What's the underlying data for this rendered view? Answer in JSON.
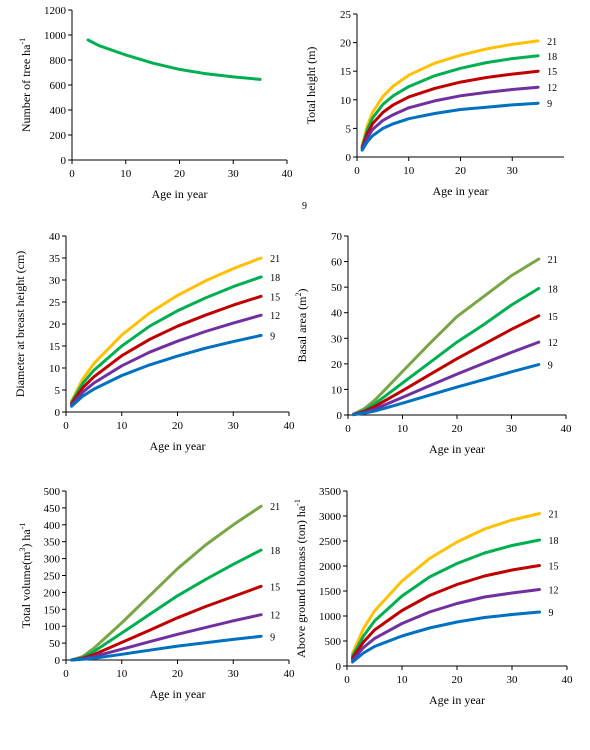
{
  "colors": {
    "21": "#ffc000",
    "18": "#00b050",
    "15": "#c00000",
    "12": "#7030a0",
    "9": "#0070c0",
    "single": "#00b050",
    "olive": "#77a744"
  },
  "stray_label": "9",
  "chart_data": [
    {
      "type": "line",
      "xlabel": "Age in year",
      "ylabel": "Number of tree ha",
      "ylabel_sup": "-1",
      "xlim": [
        0,
        40
      ],
      "ylim": [
        0,
        1200
      ],
      "xticks": [
        0,
        10,
        20,
        30,
        40
      ],
      "yticks": [
        0,
        200,
        400,
        600,
        800,
        1000,
        1200
      ],
      "series": [
        {
          "color_key": "single",
          "x": [
            3,
            5,
            10,
            15,
            20,
            25,
            30,
            35
          ],
          "y": [
            960,
            915,
            840,
            775,
            725,
            690,
            665,
            645
          ]
        }
      ]
    },
    {
      "type": "line",
      "xlabel": "Age in year",
      "ylabel": "Total height (m)",
      "xlim": [
        0,
        40
      ],
      "ylim": [
        0,
        25
      ],
      "xticks": [
        0,
        10,
        20,
        30
      ],
      "xtick_labels": [
        "0",
        "10",
        "20",
        "30"
      ],
      "yticks": [
        0,
        5,
        10,
        15,
        20,
        25
      ],
      "series": [
        {
          "name": "21",
          "color_key": "21",
          "x": [
            1,
            2,
            3,
            5,
            7,
            10,
            15,
            20,
            25,
            30,
            35
          ],
          "y": [
            2.0,
            5.5,
            7.8,
            10.6,
            12.4,
            14.3,
            16.4,
            17.8,
            18.9,
            19.7,
            20.3
          ]
        },
        {
          "name": "18",
          "color_key": "18",
          "x": [
            1,
            2,
            3,
            5,
            7,
            10,
            15,
            20,
            25,
            30,
            35
          ],
          "y": [
            1.8,
            4.8,
            6.8,
            9.2,
            10.7,
            12.3,
            14.2,
            15.5,
            16.5,
            17.2,
            17.7
          ]
        },
        {
          "name": "15",
          "color_key": "15",
          "x": [
            1,
            2,
            3,
            5,
            7,
            10,
            15,
            20,
            25,
            30,
            35
          ],
          "y": [
            1.6,
            4.1,
            5.8,
            7.8,
            9.1,
            10.5,
            12.0,
            13.1,
            13.9,
            14.5,
            15.0
          ]
        },
        {
          "name": "12",
          "color_key": "12",
          "x": [
            1,
            2,
            3,
            5,
            7,
            10,
            15,
            20,
            25,
            30,
            35
          ],
          "y": [
            1.4,
            3.4,
            4.8,
            6.4,
            7.4,
            8.6,
            9.8,
            10.7,
            11.3,
            11.8,
            12.2
          ]
        },
        {
          "name": "9",
          "color_key": "9",
          "x": [
            1,
            2,
            3,
            5,
            7,
            10,
            15,
            20,
            25,
            30,
            35
          ],
          "y": [
            1.2,
            2.7,
            3.7,
            5.0,
            5.8,
            6.7,
            7.6,
            8.3,
            8.7,
            9.1,
            9.4
          ]
        }
      ]
    },
    {
      "type": "line",
      "xlabel": "Age in year",
      "ylabel": "Diameter at breast height (cm)",
      "xlim": [
        0,
        40
      ],
      "ylim": [
        0,
        40
      ],
      "xticks": [
        0,
        10,
        20,
        30,
        40
      ],
      "yticks": [
        0,
        5,
        10,
        15,
        20,
        25,
        30,
        35,
        40
      ],
      "series": [
        {
          "name": "21",
          "color_key": "21",
          "x": [
            1,
            3,
            5,
            10,
            15,
            20,
            25,
            30,
            35
          ],
          "y": [
            2.5,
            7.5,
            11.0,
            17.5,
            22.5,
            26.5,
            29.8,
            32.6,
            35.0
          ]
        },
        {
          "name": "18",
          "color_key": "18",
          "x": [
            1,
            3,
            5,
            10,
            15,
            20,
            25,
            30,
            35
          ],
          "y": [
            2.2,
            6.5,
            9.5,
            15.0,
            19.5,
            23.0,
            25.9,
            28.5,
            30.7
          ]
        },
        {
          "name": "15",
          "color_key": "15",
          "x": [
            1,
            3,
            5,
            10,
            15,
            20,
            25,
            30,
            35
          ],
          "y": [
            1.9,
            5.5,
            8.0,
            12.8,
            16.5,
            19.5,
            22.0,
            24.3,
            26.3
          ]
        },
        {
          "name": "12",
          "color_key": "12",
          "x": [
            1,
            3,
            5,
            10,
            15,
            20,
            25,
            30,
            35
          ],
          "y": [
            1.6,
            4.5,
            6.6,
            10.5,
            13.6,
            16.1,
            18.3,
            20.2,
            22.0
          ]
        },
        {
          "name": "9",
          "color_key": "9",
          "x": [
            1,
            3,
            5,
            10,
            15,
            20,
            25,
            30,
            35
          ],
          "y": [
            1.3,
            3.6,
            5.2,
            8.3,
            10.7,
            12.7,
            14.5,
            16.0,
            17.4
          ]
        }
      ]
    },
    {
      "type": "line",
      "xlabel": "Age in year",
      "ylabel": "Basal area (m",
      "ylabel_sup": "2",
      "ylabel_tail": ")",
      "xlim": [
        0,
        40
      ],
      "ylim": [
        0,
        70
      ],
      "xticks": [
        0,
        10,
        20,
        30,
        40
      ],
      "yticks": [
        0,
        10,
        20,
        30,
        40,
        50,
        60,
        70
      ],
      "series": [
        {
          "name": "21",
          "color_key": "olive",
          "x": [
            1,
            3,
            5,
            10,
            15,
            20,
            25,
            30,
            35
          ],
          "y": [
            0.3,
            2.5,
            6.0,
            17.0,
            28.0,
            38.5,
            46.5,
            54.5,
            61.0
          ]
        },
        {
          "name": "18",
          "color_key": "18",
          "x": [
            1,
            3,
            5,
            10,
            15,
            20,
            25,
            30,
            35
          ],
          "y": [
            0.2,
            1.8,
            4.5,
            12.5,
            20.5,
            28.5,
            35.5,
            43.0,
            49.5
          ]
        },
        {
          "name": "15",
          "color_key": "15",
          "x": [
            1,
            3,
            5,
            10,
            15,
            20,
            25,
            30,
            35
          ],
          "y": [
            0.2,
            1.4,
            3.4,
            9.5,
            15.8,
            22.0,
            27.8,
            33.5,
            38.8
          ]
        },
        {
          "name": "12",
          "color_key": "12",
          "x": [
            1,
            3,
            5,
            10,
            15,
            20,
            25,
            30,
            35
          ],
          "y": [
            0.1,
            1.0,
            2.4,
            6.9,
            11.5,
            16.0,
            20.3,
            24.5,
            28.5
          ]
        },
        {
          "name": "9",
          "color_key": "9",
          "x": [
            1,
            3,
            5,
            10,
            15,
            20,
            25,
            30,
            35
          ],
          "y": [
            0.1,
            0.7,
            1.6,
            4.6,
            7.8,
            10.9,
            13.9,
            16.9,
            19.7
          ]
        }
      ]
    },
    {
      "type": "line",
      "xlabel": "Age in year",
      "ylabel": "Total volume(m",
      "ylabel_sup": "3",
      "ylabel_tail": ") ha",
      "ylabel_sup2": "-1",
      "xlim": [
        0,
        40
      ],
      "ylim": [
        0,
        500
      ],
      "xticks": [
        0,
        10,
        20,
        30,
        40
      ],
      "yticks": [
        0,
        50,
        100,
        150,
        200,
        250,
        300,
        350,
        400,
        450,
        500
      ],
      "series": [
        {
          "name": "21",
          "color_key": "olive",
          "x": [
            1,
            3,
            5,
            10,
            15,
            20,
            25,
            30,
            35
          ],
          "y": [
            0,
            10,
            35,
            110,
            190,
            270,
            340,
            400,
            455
          ]
        },
        {
          "name": "18",
          "color_key": "18",
          "x": [
            1,
            3,
            5,
            10,
            15,
            20,
            25,
            30,
            35
          ],
          "y": [
            0,
            7,
            25,
            80,
            135,
            190,
            238,
            283,
            325
          ]
        },
        {
          "name": "15",
          "color_key": "15",
          "x": [
            1,
            3,
            5,
            10,
            15,
            20,
            25,
            30,
            35
          ],
          "y": [
            0,
            5,
            16,
            52,
            88,
            125,
            158,
            188,
            218
          ]
        },
        {
          "name": "12",
          "color_key": "12",
          "x": [
            1,
            3,
            5,
            10,
            15,
            20,
            25,
            30,
            35
          ],
          "y": [
            0,
            3,
            10,
            32,
            54,
            76,
            96,
            116,
            134
          ]
        },
        {
          "name": "9",
          "color_key": "9",
          "x": [
            1,
            3,
            5,
            10,
            15,
            20,
            25,
            30,
            35
          ],
          "y": [
            0,
            2,
            5,
            17,
            29,
            41,
            51,
            61,
            70
          ]
        }
      ]
    },
    {
      "type": "line",
      "xlabel": "Age in year",
      "ylabel": "Above ground biomass (ton) ha",
      "ylabel_sup": "-1",
      "xlim": [
        0,
        40
      ],
      "ylim": [
        0,
        3500
      ],
      "xticks": [
        0,
        10,
        20,
        30,
        40
      ],
      "yticks": [
        0,
        500,
        1000,
        1500,
        2000,
        2500,
        3000,
        3500
      ],
      "series": [
        {
          "name": "21",
          "color_key": "21",
          "x": [
            1,
            3,
            5,
            10,
            15,
            20,
            25,
            30,
            35
          ],
          "y": [
            250,
            750,
            1100,
            1700,
            2150,
            2480,
            2740,
            2920,
            3050
          ]
        },
        {
          "name": "18",
          "color_key": "18",
          "x": [
            1,
            3,
            5,
            10,
            15,
            20,
            25,
            30,
            35
          ],
          "y": [
            200,
            600,
            900,
            1400,
            1780,
            2050,
            2260,
            2410,
            2520
          ]
        },
        {
          "name": "15",
          "color_key": "15",
          "x": [
            1,
            3,
            5,
            10,
            15,
            20,
            25,
            30,
            35
          ],
          "y": [
            160,
            480,
            720,
            1110,
            1410,
            1630,
            1800,
            1920,
            2010
          ]
        },
        {
          "name": "12",
          "color_key": "12",
          "x": [
            1,
            3,
            5,
            10,
            15,
            20,
            25,
            30,
            35
          ],
          "y": [
            120,
            370,
            550,
            850,
            1080,
            1250,
            1380,
            1460,
            1530
          ]
        },
        {
          "name": "9",
          "color_key": "9",
          "x": [
            1,
            3,
            5,
            10,
            15,
            20,
            25,
            30,
            35
          ],
          "y": [
            80,
            260,
            390,
            600,
            760,
            880,
            970,
            1030,
            1080
          ]
        }
      ]
    }
  ]
}
